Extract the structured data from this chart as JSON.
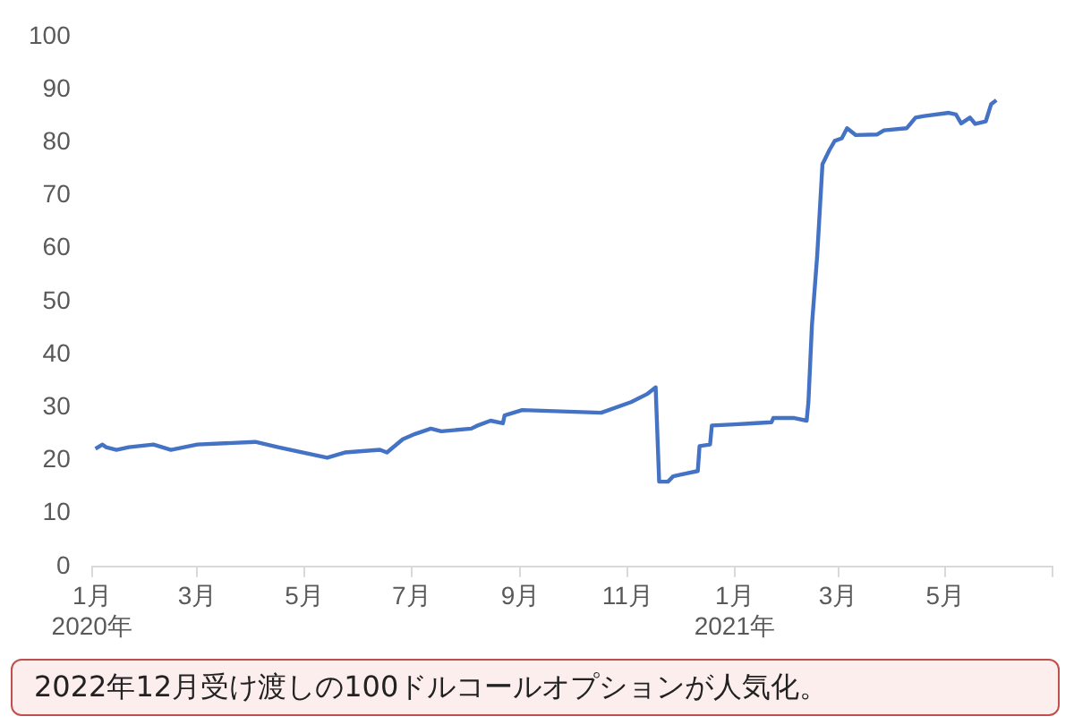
{
  "chart_data": {
    "type": "line",
    "grid": false,
    "legend": false,
    "marker": "none",
    "line_style": "solid",
    "x": [
      "2020-01-03",
      "2020-01-07",
      "2020-01-09",
      "2020-01-15",
      "2020-01-22",
      "2020-02-05",
      "2020-02-15",
      "2020-03-01",
      "2020-04-03",
      "2020-04-16",
      "2020-05-14",
      "2020-05-24",
      "2020-06-13",
      "2020-06-17",
      "2020-06-26",
      "2020-07-03",
      "2020-07-12",
      "2020-07-18",
      "2020-08-04",
      "2020-08-07",
      "2020-08-15",
      "2020-08-22",
      "2020-08-23",
      "2020-09-02",
      "2020-10-17",
      "2020-11-03",
      "2020-11-12",
      "2020-11-17",
      "2020-11-19",
      "2020-11-24",
      "2020-11-27",
      "2020-12-04",
      "2020-12-11",
      "2020-12-12",
      "2020-12-18",
      "2020-12-19",
      "2021-01-01",
      "2021-01-11",
      "2021-01-22",
      "2021-01-23",
      "2021-02-04",
      "2021-02-11",
      "2021-02-12",
      "2021-02-14",
      "2021-02-17",
      "2021-02-20",
      "2021-02-24",
      "2021-02-27",
      "2021-03-03",
      "2021-03-06",
      "2021-03-11",
      "2021-03-23",
      "2021-03-27",
      "2021-04-09",
      "2021-04-14",
      "2021-04-19",
      "2021-05-03",
      "2021-05-07",
      "2021-05-10",
      "2021-05-15",
      "2021-05-18",
      "2021-05-24",
      "2021-05-27",
      "2021-05-30"
    ],
    "series": [
      {
        "color": "#4472c4",
        "values": [
          22.2,
          23,
          22.5,
          22,
          22.5,
          23,
          22,
          23,
          23.5,
          22.5,
          20.5,
          21.5,
          22,
          21.5,
          24,
          25,
          26,
          25.5,
          26,
          26.5,
          27.5,
          27,
          28.5,
          29.5,
          29,
          31,
          32.5,
          33.8,
          16,
          16,
          17,
          17.5,
          18,
          22.7,
          23,
          26.6,
          26.8,
          27,
          27.2,
          28,
          28,
          27.5,
          31,
          45.5,
          58.7,
          75.9,
          78.6,
          80.3,
          80.8,
          82.7,
          81.4,
          81.5,
          82.3,
          82.7,
          84.7,
          85,
          85.6,
          85.3,
          83.6,
          84.7,
          83.5,
          84,
          87.2,
          88
        ]
      }
    ],
    "xlim": [
      "2020-01-01",
      "2021-07-01"
    ],
    "xticks": [
      {
        "value": "2020-01-01",
        "label": "1月\n2020年"
      },
      {
        "value": "2020-03-01",
        "label": "3月"
      },
      {
        "value": "2020-05-01",
        "label": "5月"
      },
      {
        "value": "2020-07-01",
        "label": "7月"
      },
      {
        "value": "2020-09-01",
        "label": "9月"
      },
      {
        "value": "2020-11-01",
        "label": "11月"
      },
      {
        "value": "2021-01-01",
        "label": "1月\n2021年"
      },
      {
        "value": "2021-03-01",
        "label": "3月"
      },
      {
        "value": "2021-05-01",
        "label": "5月"
      },
      {
        "value": "2021-07-01",
        "label": null
      }
    ],
    "ylim": [
      0,
      100
    ],
    "yticks": [
      0,
      10,
      20,
      30,
      40,
      50,
      60,
      70,
      80,
      90,
      100
    ],
    "annotations": [
      "2022年12月受け渡しの100ドルコールオプションが人気化。"
    ]
  }
}
